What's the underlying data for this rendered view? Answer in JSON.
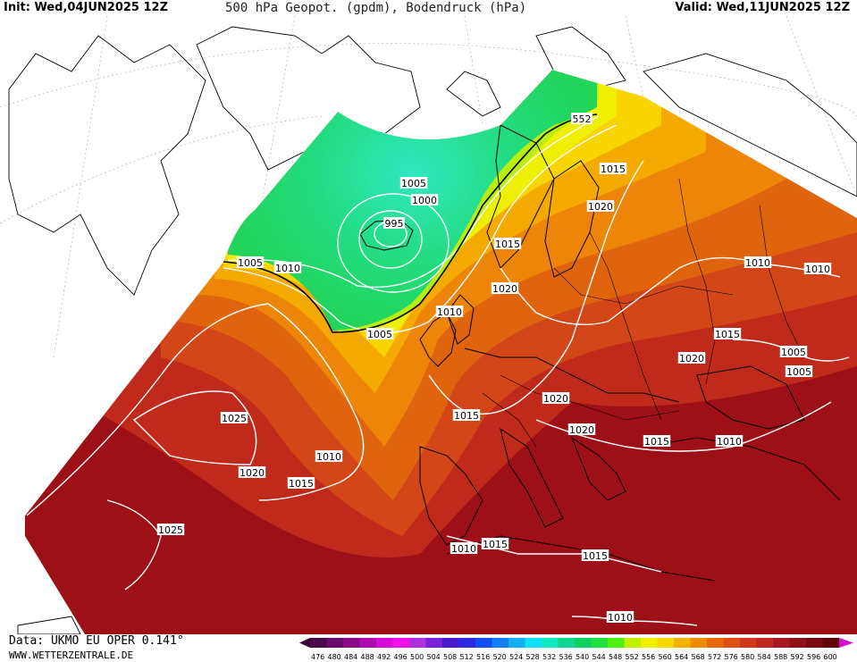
{
  "header": {
    "init": "Init: Wed,04JUN2025 12Z",
    "title": "500 hPa Geopot. (gpdm), Bodendruck (hPa)",
    "valid": "Valid: Wed,11JUN2025 12Z"
  },
  "footer": {
    "data_source": "Data: UKMO EU OPER 0.141°",
    "website": "WWW.WETTERZENTRALE.DE"
  },
  "isobar_labels": [
    {
      "text": "1005",
      "pos": [
        280,
        294
      ]
    },
    {
      "text": "1010",
      "pos": [
        322,
        300
      ]
    },
    {
      "text": "1005",
      "pos": [
        463,
        205
      ]
    },
    {
      "text": "1000",
      "pos": [
        475,
        224
      ]
    },
    {
      "text": "995",
      "pos": [
        441,
        250
      ]
    },
    {
      "text": "552",
      "pos": [
        651,
        133
      ]
    },
    {
      "text": "1015",
      "pos": [
        686,
        189
      ]
    },
    {
      "text": "1020",
      "pos": [
        672,
        231
      ]
    },
    {
      "text": "1015",
      "pos": [
        568,
        273
      ]
    },
    {
      "text": "1020",
      "pos": [
        565,
        323
      ]
    },
    {
      "text": "1010",
      "pos": [
        503,
        349
      ]
    },
    {
      "text": "1005",
      "pos": [
        425,
        374
      ]
    },
    {
      "text": "1010",
      "pos": [
        848,
        294
      ]
    },
    {
      "text": "1010",
      "pos": [
        915,
        301
      ]
    },
    {
      "text": "1015",
      "pos": [
        814,
        374
      ]
    },
    {
      "text": "1005",
      "pos": [
        888,
        394
      ]
    },
    {
      "text": "1005",
      "pos": [
        894,
        416
      ]
    },
    {
      "text": "1020",
      "pos": [
        774,
        401
      ]
    },
    {
      "text": "1020",
      "pos": [
        622,
        446
      ]
    },
    {
      "text": "1020",
      "pos": [
        651,
        481
      ]
    },
    {
      "text": "1015",
      "pos": [
        522,
        465
      ]
    },
    {
      "text": "1015",
      "pos": [
        735,
        494
      ]
    },
    {
      "text": "1010",
      "pos": [
        816,
        494
      ]
    },
    {
      "text": "1025",
      "pos": [
        262,
        468
      ]
    },
    {
      "text": "1010",
      "pos": [
        368,
        511
      ]
    },
    {
      "text": "1020",
      "pos": [
        282,
        529
      ]
    },
    {
      "text": "1015",
      "pos": [
        337,
        541
      ]
    },
    {
      "text": "1025",
      "pos": [
        191,
        593
      ]
    },
    {
      "text": "1010",
      "pos": [
        519,
        614
      ]
    },
    {
      "text": "1015",
      "pos": [
        554,
        609
      ]
    },
    {
      "text": "1015",
      "pos": [
        666,
        622
      ]
    },
    {
      "text": "1010",
      "pos": [
        694,
        691
      ]
    }
  ],
  "colorbar": {
    "ticks": [
      "476",
      "480",
      "484",
      "488",
      "492",
      "496",
      "500",
      "504",
      "508",
      "512",
      "516",
      "520",
      "524",
      "528",
      "532",
      "536",
      "540",
      "544",
      "548",
      "552",
      "556",
      "560",
      "564",
      "568",
      "572",
      "576",
      "580",
      "584",
      "588",
      "592",
      "596",
      "600"
    ],
    "colors": [
      "#4a0a4a",
      "#6a0a6a",
      "#8a0a8a",
      "#b00ab0",
      "#d80ad8",
      "#f010f0",
      "#b030e0",
      "#7a20d8",
      "#4a1ad0",
      "#2a2ae0",
      "#1050f0",
      "#1080ff",
      "#10b0ff",
      "#10e0ff",
      "#10e8c0",
      "#10d890",
      "#10d060",
      "#20e040",
      "#50f010",
      "#c0f000",
      "#f0f000",
      "#f8d800",
      "#f8b000",
      "#f08c00",
      "#e86800",
      "#e05010",
      "#d03818",
      "#c02820",
      "#a81820",
      "#901018",
      "#7a0810",
      "#600008"
    ]
  },
  "colors": {
    "low_green": "#22d45a",
    "core_cyan": "#20e0a8",
    "yellow": "#f4e800",
    "orange": "#e8780a",
    "red": "#c83418",
    "darkred": "#9a0c18"
  }
}
